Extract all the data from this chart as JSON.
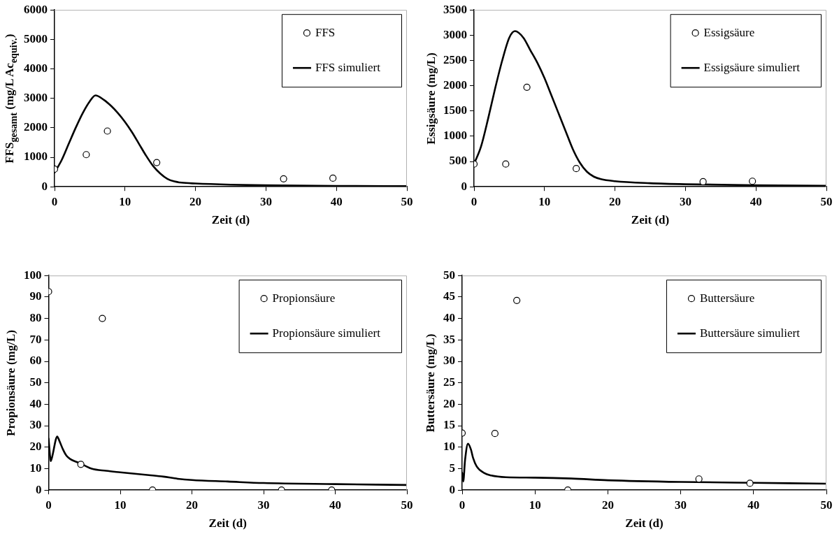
{
  "chart_data": [
    {
      "type": "scatter",
      "xlabel": "Zeit (d)",
      "ylabel": "FFS$_{gesamt}$ (mg/L Ac$_{equiv.}$)",
      "xlim": [
        0,
        50
      ],
      "xticks": [
        0,
        10,
        20,
        30,
        40,
        50
      ],
      "ylim": [
        0,
        6000
      ],
      "yticks": [
        0,
        1000,
        2000,
        3000,
        4000,
        5000,
        6000
      ],
      "grid": false,
      "legend": "top right",
      "series": [
        {
          "name": "FFS",
          "color": "#000000",
          "marker": "circle",
          "x": [
            0,
            4.5,
            7.5,
            14.5,
            32.5,
            39.5
          ],
          "values": [
            600,
            1090,
            1890,
            820,
            270,
            290
          ]
        },
        {
          "name": "FFS simuliert",
          "type": "line",
          "color": "#000000",
          "marker": "none",
          "x": [
            0,
            1,
            2,
            3,
            4,
            5,
            5.8,
            7,
            8,
            9,
            10,
            11,
            12,
            13,
            14,
            15,
            16,
            17,
            18,
            20,
            25,
            30,
            40,
            50
          ],
          "values": [
            480,
            900,
            1450,
            2000,
            2500,
            2900,
            3100,
            2950,
            2750,
            2500,
            2200,
            1850,
            1450,
            1050,
            700,
            450,
            270,
            180,
            140,
            110,
            70,
            50,
            30,
            20
          ]
        }
      ]
    },
    {
      "type": "scatter",
      "xlabel": "Zeit (d)",
      "ylabel": "Essigsäure (mg/L)",
      "xlim": [
        0,
        50
      ],
      "xticks": [
        0,
        10,
        20,
        30,
        40,
        50
      ],
      "ylim": [
        0,
        3500
      ],
      "yticks": [
        0,
        500,
        1000,
        1500,
        2000,
        2500,
        3000,
        3500
      ],
      "grid": false,
      "legend": "top right",
      "series": [
        {
          "name": "Essigsäure",
          "color": "#000000",
          "marker": "circle",
          "x": [
            0,
            4.5,
            7.5,
            14.5,
            32.5,
            39.5
          ],
          "values": [
            450,
            450,
            1970,
            360,
            100,
            110
          ]
        },
        {
          "name": "Essigsäure simuliert",
          "type": "line",
          "color": "#000000",
          "marker": "none",
          "x": [
            0,
            1,
            2,
            3,
            4,
            5,
            5.8,
            7,
            8,
            9,
            10,
            11,
            12,
            13,
            14,
            15,
            16,
            17,
            18,
            20,
            25,
            30,
            40,
            50
          ],
          "values": [
            450,
            800,
            1350,
            1950,
            2500,
            2950,
            3080,
            2950,
            2700,
            2450,
            2150,
            1800,
            1450,
            1100,
            750,
            480,
            300,
            200,
            150,
            110,
            70,
            50,
            30,
            20
          ]
        }
      ]
    },
    {
      "type": "scatter",
      "xlabel": "Zeit (d)",
      "ylabel": "Propionsäure (mg/L)",
      "xlim": [
        0,
        50
      ],
      "xticks": [
        0,
        10,
        20,
        30,
        40,
        50
      ],
      "ylim": [
        0,
        100
      ],
      "yticks": [
        0,
        10,
        20,
        30,
        40,
        50,
        60,
        70,
        80,
        90,
        100
      ],
      "grid": false,
      "legend": "top right",
      "series": [
        {
          "name": "Propionsäure",
          "color": "#000000",
          "marker": "circle",
          "x": [
            0,
            4.5,
            7.5,
            14.5,
            32.5,
            39.5
          ],
          "values": [
            92.5,
            12,
            80,
            0,
            0,
            0
          ]
        },
        {
          "name": "Propionsäure simuliert",
          "type": "line",
          "color": "#000000",
          "marker": "none",
          "x": [
            0,
            0.2,
            0.3,
            0.6,
            1,
            1.2,
            1.5,
            2,
            2.5,
            3,
            4,
            5,
            6,
            8,
            10,
            14,
            16,
            18,
            20,
            25,
            30,
            40,
            50
          ],
          "values": [
            24,
            16,
            13.5,
            17,
            23.5,
            25,
            23,
            19,
            16,
            14.5,
            13,
            11.5,
            10,
            9,
            8.3,
            7,
            6.3,
            5.3,
            4.7,
            4,
            3.3,
            2.8,
            2.4
          ]
        }
      ]
    },
    {
      "type": "scatter",
      "xlabel": "Zeit (d)",
      "ylabel": "Buttersäure (mg/L)",
      "xlim": [
        0,
        50
      ],
      "xticks": [
        0,
        10,
        20,
        30,
        40,
        50
      ],
      "ylim": [
        0,
        50
      ],
      "yticks": [
        0,
        5,
        10,
        15,
        20,
        25,
        30,
        35,
        40,
        45,
        50
      ],
      "grid": false,
      "legend": "top right",
      "series": [
        {
          "name": "Buttersäure",
          "color": "#000000",
          "marker": "circle",
          "x": [
            0,
            4.5,
            7.5,
            14.5,
            32.5,
            39.5
          ],
          "values": [
            13.3,
            13.2,
            44.2,
            0,
            2.6,
            1.6
          ]
        },
        {
          "name": "Buttersäure simuliert",
          "type": "line",
          "color": "#000000",
          "marker": "none",
          "x": [
            0,
            0.15,
            0.4,
            0.8,
            1.2,
            1.5,
            2,
            3,
            4,
            6,
            10,
            15,
            20,
            30,
            40,
            50
          ],
          "values": [
            4,
            2,
            7,
            10.8,
            9.5,
            7.5,
            5.5,
            4,
            3.4,
            3,
            2.9,
            2.7,
            2.3,
            1.9,
            1.7,
            1.5
          ]
        }
      ]
    }
  ]
}
